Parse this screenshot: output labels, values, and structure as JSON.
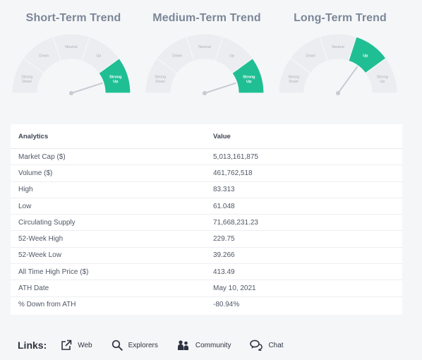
{
  "gauges": [
    {
      "title": "Short-Term Trend",
      "labels": {
        "strong_down": [
          "Strong",
          "Down"
        ],
        "down": "Down",
        "neutral": "Neutral",
        "up": "Up",
        "strong_up": [
          "Strong",
          "Up"
        ]
      },
      "active": "strong_up"
    },
    {
      "title": "Medium-Term Trend",
      "labels": {
        "strong_down": [
          "Strong",
          "Down"
        ],
        "down": "Down",
        "neutral": "Neutral",
        "up": "Up",
        "strong_up": [
          "Strong",
          "Up"
        ]
      },
      "active": "strong_up"
    },
    {
      "title": "Long-Term Trend",
      "labels": {
        "strong_down": [
          "Strong",
          "Down"
        ],
        "down": "Down",
        "neutral": "Neutral",
        "up": "Up",
        "strong_up": [
          "Strong",
          "Up"
        ]
      },
      "active": "up"
    }
  ],
  "analytics": {
    "header": {
      "metric": "Analytics",
      "value": "Value"
    },
    "rows": [
      {
        "label": "Market Cap ($)",
        "value": "5,013,161,875",
        "negative": false
      },
      {
        "label": "Volume ($)",
        "value": "461,762,518",
        "negative": false
      },
      {
        "label": "High",
        "value": "83.313",
        "negative": false
      },
      {
        "label": "Low",
        "value": "61.048",
        "negative": false
      },
      {
        "label": "Circulating Supply",
        "value": "71,668,231.23",
        "negative": false
      },
      {
        "label": "52-Week High",
        "value": "229.75",
        "negative": false
      },
      {
        "label": "52-Week Low",
        "value": "39.266",
        "negative": false
      },
      {
        "label": "All Time High Price ($)",
        "value": "413.49",
        "negative": false
      },
      {
        "label": "ATH Date",
        "value": "May 10, 2021",
        "negative": false
      },
      {
        "label": "% Down from ATH",
        "value": "-80.94%",
        "negative": true
      }
    ]
  },
  "links": {
    "title": "Links:",
    "items": [
      {
        "label": "Web",
        "icon": "external-link-icon"
      },
      {
        "label": "Explorers",
        "icon": "search-icon"
      },
      {
        "label": "Community",
        "icon": "community-icon"
      },
      {
        "label": "Chat",
        "icon": "chat-icon"
      }
    ]
  },
  "colors": {
    "active_segment": "#1fbf93",
    "inactive_segment": "#ebedf0",
    "negative": "#e0403a",
    "title_text": "#7b8797"
  }
}
